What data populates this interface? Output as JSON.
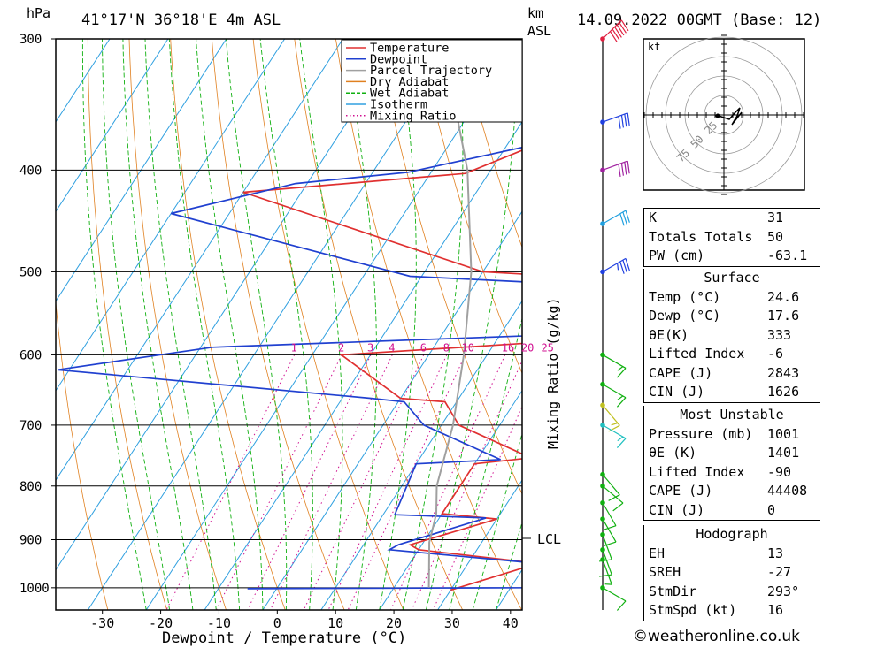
{
  "header": {
    "pressure_unit": "hPa",
    "location": "41°17'N  36°18'E  4m  ASL",
    "km_label": "km",
    "asl_label": "ASL",
    "datetime": "14.09.2022  00GMT  (Base: 12)"
  },
  "colors": {
    "temperature": "#e03030",
    "dewpoint": "#2040d0",
    "parcel": "#a0a0a0",
    "dry_adiabat": "#e08020",
    "wet_adiabat": "#10b010",
    "isotherm": "#30a0e0",
    "mixing_ratio": "#d01090"
  },
  "chart_data": {
    "type": "line",
    "title": "",
    "xlabel": "Dewpoint / Temperature (°C)",
    "ylabel": "",
    "xlim": [
      -38,
      42
    ],
    "ylim": [
      1050,
      300
    ],
    "y_scale": "log",
    "skew": true,
    "pressure_levels": [
      300,
      400,
      500,
      600,
      700,
      800,
      900,
      1000
    ],
    "x_ticks": [
      -30,
      -20,
      -10,
      0,
      10,
      20,
      30,
      40
    ],
    "legend": [
      "Temperature",
      "Dewpoint",
      "Parcel Trajectory",
      "Dry Adiabat",
      "Wet Adiabat",
      "Isotherm",
      "Mixing Ratio"
    ],
    "legend_position": "top-right",
    "mixing_ratio_labels": [
      "1",
      "2",
      "3",
      "4",
      "6",
      "8",
      "10",
      "16",
      "20",
      "25"
    ],
    "mixing_ratio_axis_label": "Mixing Ratio (g/kg)",
    "lcl_label": "LCL",
    "lcl_pressure": 905,
    "series": [
      {
        "name": "Temperature",
        "points": [
          [
            1005,
            30
          ],
          [
            948,
            42
          ],
          [
            920,
            20
          ],
          [
            910,
            18
          ],
          [
            860,
            30
          ],
          [
            850,
            20
          ],
          [
            762,
            20
          ],
          [
            752,
            29
          ],
          [
            700,
            13
          ],
          [
            665,
            8
          ],
          [
            660,
            0
          ],
          [
            600,
            -15
          ],
          [
            572,
            42
          ],
          [
            515,
            42
          ],
          [
            500,
            0
          ],
          [
            420,
            -50
          ],
          [
            403,
            -14
          ],
          [
            360,
            2
          ],
          [
            300,
            -25
          ]
        ]
      },
      {
        "name": "Dewpoint",
        "points": [
          [
            1002,
            -5
          ],
          [
            1000,
            42
          ],
          [
            948,
            42
          ],
          [
            920,
            15
          ],
          [
            910,
            16
          ],
          [
            858,
            28
          ],
          [
            852,
            12
          ],
          [
            762,
            10
          ],
          [
            755,
            24
          ],
          [
            700,
            7
          ],
          [
            665,
            1
          ],
          [
            660,
            -5
          ],
          [
            620,
            -62
          ],
          [
            590,
            -38
          ],
          [
            568,
            42
          ],
          [
            522,
            42
          ],
          [
            505,
            -12
          ],
          [
            440,
            -60
          ],
          [
            412,
            -42
          ],
          [
            402,
            -24
          ],
          [
            360,
            10
          ],
          [
            300,
            -30
          ]
        ]
      },
      {
        "name": "Parcel Trajectory",
        "points": [
          [
            1000,
            26
          ],
          [
            905,
            21
          ],
          [
            850,
            19
          ],
          [
            800,
            16
          ],
          [
            700,
            12
          ],
          [
            600,
            6
          ],
          [
            500,
            -2
          ],
          [
            400,
            -14
          ],
          [
            300,
            -33
          ]
        ]
      }
    ],
    "wind_barbs": [
      {
        "p": 300,
        "dir": 225,
        "speed_kt": 60
      },
      {
        "p": 360,
        "dir": 250,
        "speed_kt": 40
      },
      {
        "p": 400,
        "dir": 250,
        "speed_kt": 40
      },
      {
        "p": 450,
        "dir": 240,
        "speed_kt": 30
      },
      {
        "p": 500,
        "dir": 240,
        "speed_kt": 35
      },
      {
        "p": 600,
        "dir": 300,
        "speed_kt": 15
      },
      {
        "p": 640,
        "dir": 300,
        "speed_kt": 15
      },
      {
        "p": 670,
        "dir": 320,
        "speed_kt": 15
      },
      {
        "p": 700,
        "dir": 300,
        "speed_kt": 15
      },
      {
        "p": 780,
        "dir": 320,
        "speed_kt": 10
      },
      {
        "p": 800,
        "dir": 310,
        "speed_kt": 10
      },
      {
        "p": 830,
        "dir": 330,
        "speed_kt": 10
      },
      {
        "p": 860,
        "dir": 330,
        "speed_kt": 10
      },
      {
        "p": 890,
        "dir": 340,
        "speed_kt": 10
      },
      {
        "p": 920,
        "dir": 340,
        "speed_kt": 10
      },
      {
        "p": 940,
        "dir": 340,
        "speed_kt": 5
      },
      {
        "p": 1000,
        "dir": 300,
        "speed_kt": 10
      }
    ],
    "hodograph": {
      "unit_label": "kt",
      "ring_labels": [
        "25",
        "50",
        "75"
      ]
    }
  },
  "tables": {
    "indices": [
      {
        "label": "K",
        "value": "31"
      },
      {
        "label": "Totals Totals",
        "value": "50"
      },
      {
        "label": "PW (cm)",
        "value": "-63.1"
      }
    ],
    "surface": {
      "title": "Surface",
      "rows": [
        {
          "label": "Temp (°C)",
          "value": "24.6"
        },
        {
          "label": "Dewp (°C)",
          "value": "17.6"
        },
        {
          "label": "θE(K)",
          "value": "333"
        },
        {
          "label": "Lifted Index",
          "value": "-6"
        },
        {
          "label": "CAPE (J)",
          "value": "2843"
        },
        {
          "label": "CIN (J)",
          "value": "1626"
        }
      ]
    },
    "most_unstable": {
      "title": "Most Unstable",
      "rows": [
        {
          "label": "Pressure (mb)",
          "value": "1001"
        },
        {
          "label": "θE (K)",
          "value": "1401"
        },
        {
          "label": "Lifted Index",
          "value": "-90"
        },
        {
          "label": "CAPE (J)",
          "value": "44408"
        },
        {
          "label": "CIN (J)",
          "value": "0"
        }
      ]
    },
    "hodograph_table": {
      "title": "Hodograph",
      "rows": [
        {
          "label": "EH",
          "value": "13"
        },
        {
          "label": "SREH",
          "value": "-27"
        },
        {
          "label": "StmDir",
          "value": "293°"
        },
        {
          "label": "StmSpd (kt)",
          "value": "16"
        }
      ]
    }
  },
  "footer": {
    "copyright": "©weatheronline.co.uk"
  }
}
